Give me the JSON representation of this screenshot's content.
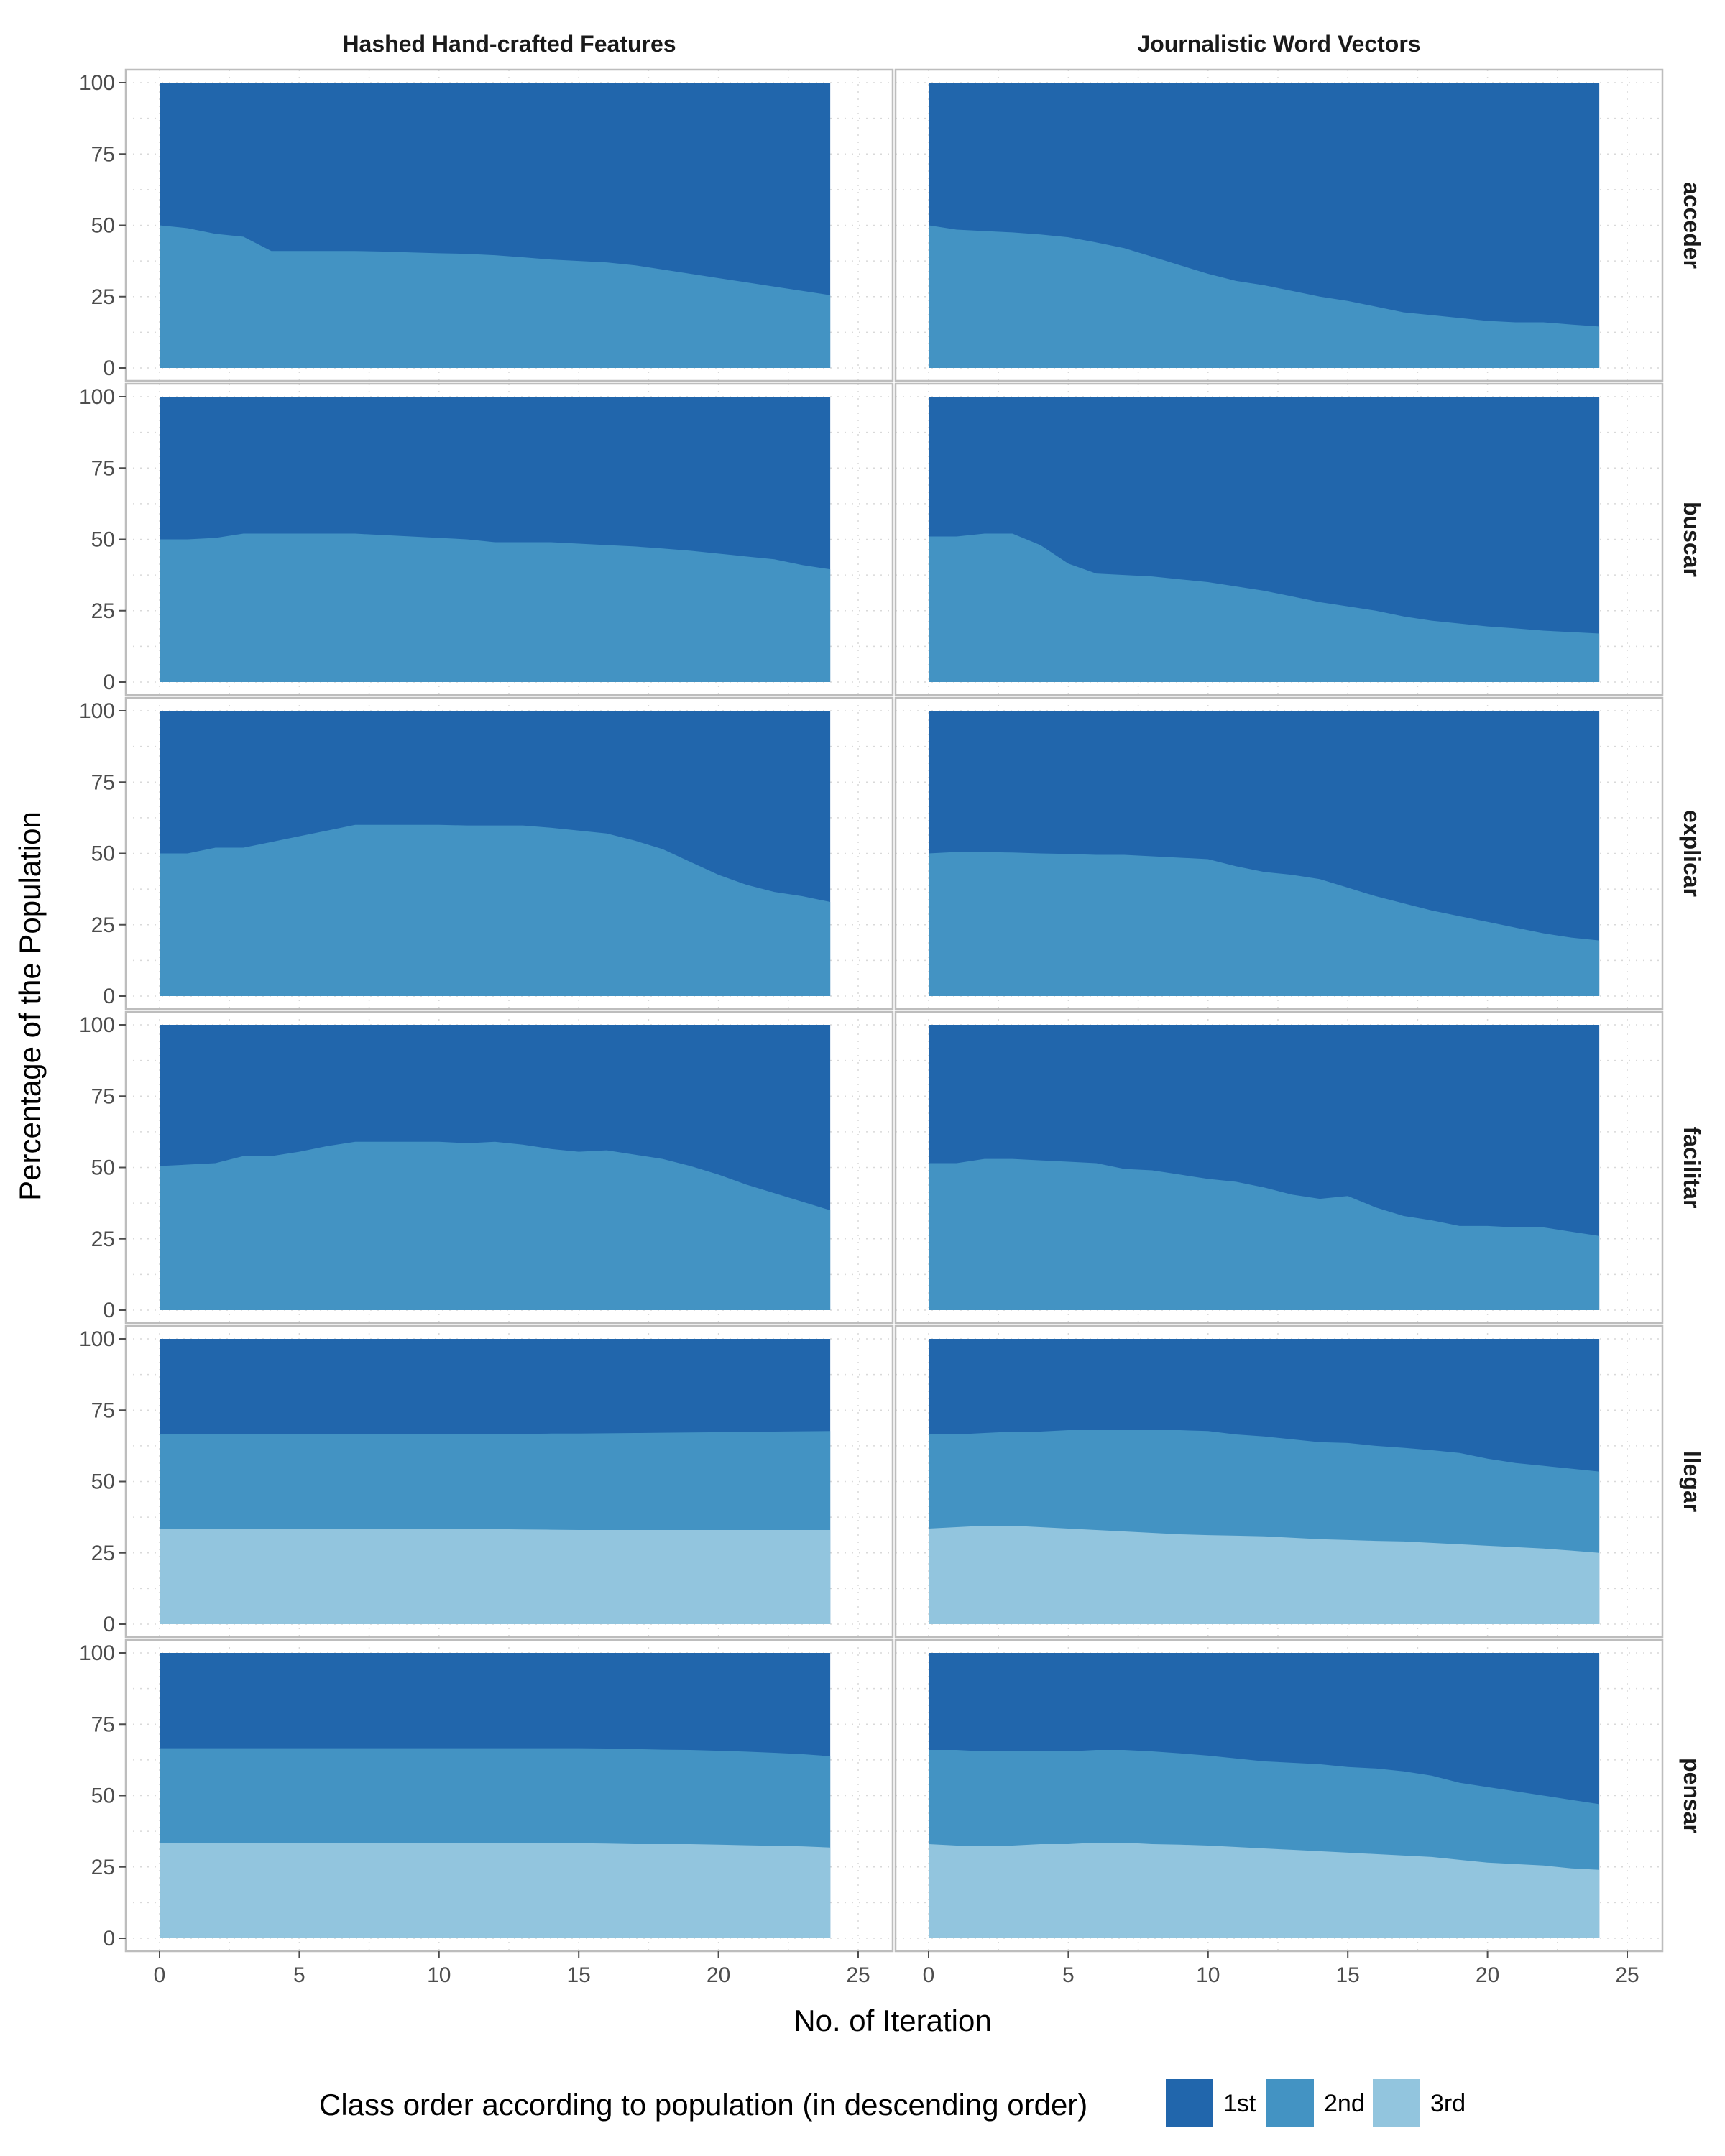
{
  "chart_data": {
    "type": "area",
    "stacked": true,
    "xlabel": "No. of Iteration",
    "ylabel": "Percentage of the Population",
    "xlim": [
      0,
      25
    ],
    "ylim": [
      0,
      100
    ],
    "x_ticks": [
      0,
      5,
      10,
      15,
      20,
      25
    ],
    "y_ticks": [
      0,
      25,
      50,
      75,
      100
    ],
    "grid": true,
    "columns": [
      "Hashed Hand-crafted Features",
      "Journalistic Word Vectors"
    ],
    "rows": [
      "acceder",
      "buscar",
      "explicar",
      "facilitar",
      "llegar",
      "pensar"
    ],
    "x": [
      0,
      1,
      2,
      3,
      4,
      5,
      6,
      7,
      8,
      9,
      10,
      11,
      12,
      13,
      14,
      15,
      16,
      17,
      18,
      19,
      20,
      21,
      22,
      23,
      24
    ],
    "legend": {
      "title": "Class order according to population (in descending order)",
      "position": "bottom",
      "entries": [
        "1st",
        "2nd",
        "3rd"
      ]
    },
    "colors": {
      "1st": "#2166ac",
      "2nd": "#4393c3",
      "3rd": "#92c5de"
    },
    "panels": [
      {
        "row": "acceder",
        "column": "Hashed Hand-crafted Features",
        "series": [
          {
            "name": "2nd",
            "values": [
              50,
              49,
              47,
              46,
              41,
              41,
              41,
              41,
              40.8,
              40.5,
              40.2,
              40,
              39.5,
              38.8,
              38,
              37.5,
              37,
              36,
              34.5,
              33,
              31.5,
              30,
              28.5,
              27,
              25.5
            ]
          }
        ]
      },
      {
        "row": "acceder",
        "column": "Journalistic Word Vectors",
        "series": [
          {
            "name": "2nd",
            "values": [
              50,
              48.5,
              48,
              47.5,
              46.8,
              45.8,
              44,
              42,
              39,
              36,
              33,
              30.5,
              29,
              27,
              25,
              23.5,
              21.5,
              19.5,
              18.5,
              17.5,
              16.5,
              16,
              16,
              15.2,
              14.5
            ]
          }
        ]
      },
      {
        "row": "buscar",
        "column": "Hashed Hand-crafted Features",
        "series": [
          {
            "name": "2nd",
            "values": [
              50,
              50,
              50.5,
              52,
              52,
              52,
              52,
              52,
              51.5,
              51,
              50.5,
              50,
              49,
              49,
              49,
              48.5,
              48,
              47.5,
              46.8,
              46,
              45,
              44,
              43,
              41,
              39.5
            ]
          }
        ]
      },
      {
        "row": "buscar",
        "column": "Journalistic Word Vectors",
        "series": [
          {
            "name": "2nd",
            "values": [
              51,
              51,
              52,
              52,
              48,
              41.5,
              38,
              37.5,
              37,
              36,
              35,
              33.5,
              32,
              30,
              28,
              26.5,
              25,
              23,
              21.5,
              20.5,
              19.5,
              18.8,
              18,
              17.5,
              17
            ]
          }
        ]
      },
      {
        "row": "explicar",
        "column": "Hashed Hand-crafted Features",
        "series": [
          {
            "name": "2nd",
            "values": [
              50,
              50,
              52,
              52,
              54,
              56,
              58,
              60,
              60,
              60,
              60,
              59.8,
              59.8,
              59.8,
              59,
              58,
              57,
              54.5,
              51.5,
              47,
              42.5,
              39,
              36.5,
              35,
              33
            ]
          }
        ]
      },
      {
        "row": "explicar",
        "column": "Journalistic Word Vectors",
        "series": [
          {
            "name": "2nd",
            "values": [
              50,
              50.5,
              50.5,
              50.3,
              50,
              49.8,
              49.5,
              49.5,
              49,
              48.5,
              48,
              45.5,
              43.5,
              42.5,
              41,
              38,
              35,
              32.5,
              30,
              28,
              26,
              24,
              22,
              20.5,
              19.5
            ]
          }
        ]
      },
      {
        "row": "facilitar",
        "column": "Hashed Hand-crafted Features",
        "series": [
          {
            "name": "2nd",
            "values": [
              50.5,
              51,
              51.5,
              54,
              54,
              55.5,
              57.5,
              59,
              59,
              59,
              59,
              58.5,
              59,
              58,
              56.5,
              55.5,
              56,
              54.5,
              53,
              50.5,
              47.5,
              44,
              41,
              38,
              35
            ]
          }
        ]
      },
      {
        "row": "facilitar",
        "column": "Journalistic Word Vectors",
        "series": [
          {
            "name": "2nd",
            "values": [
              51.5,
              51.5,
              53,
              53,
              52.5,
              52,
              51.5,
              49.5,
              49,
              47.5,
              46,
              45,
              43,
              40.5,
              39,
              40,
              36,
              33,
              31.5,
              29.5,
              29.5,
              29,
              29,
              27.5,
              26
            ]
          }
        ]
      },
      {
        "row": "llegar",
        "column": "Hashed Hand-crafted Features",
        "series": [
          {
            "name": "3rd",
            "values": [
              33.3,
              33.3,
              33.3,
              33.3,
              33.3,
              33.3,
              33.3,
              33.3,
              33.3,
              33.3,
              33.3,
              33.3,
              33.3,
              33.2,
              33.1,
              33,
              33,
              33,
              33,
              33,
              33,
              33,
              33,
              33,
              33
            ]
          },
          {
            "name": "2nd",
            "values": [
              33.3,
              33.3,
              33.3,
              33.3,
              33.3,
              33.3,
              33.3,
              33.3,
              33.3,
              33.3,
              33.3,
              33.3,
              33.3,
              33.5,
              33.7,
              33.8,
              33.9,
              34,
              34.1,
              34.2,
              34.3,
              34.4,
              34.5,
              34.6,
              34.7
            ]
          }
        ]
      },
      {
        "row": "llegar",
        "column": "Journalistic Word Vectors",
        "series": [
          {
            "name": "3rd",
            "values": [
              33.5,
              34,
              34.5,
              34.5,
              34,
              33.5,
              33,
              32.5,
              32,
              31.5,
              31.2,
              31,
              30.8,
              30.3,
              29.8,
              29.5,
              29.2,
              29,
              28.5,
              28,
              27.5,
              27,
              26.5,
              25.8,
              25
            ]
          },
          {
            "name": "2nd",
            "values": [
              33,
              32.5,
              32.5,
              33,
              33.5,
              34.5,
              35,
              35.5,
              36,
              36.5,
              36.5,
              35.5,
              35,
              34.5,
              34,
              34,
              33.3,
              32.8,
              32.5,
              32,
              30.5,
              29.5,
              29,
              28.7,
              28.5
            ]
          }
        ]
      },
      {
        "row": "pensar",
        "column": "Hashed Hand-crafted Features",
        "series": [
          {
            "name": "3rd",
            "values": [
              33.3,
              33.3,
              33.3,
              33.3,
              33.3,
              33.3,
              33.3,
              33.3,
              33.3,
              33.3,
              33.3,
              33.3,
              33.3,
              33.3,
              33.3,
              33.3,
              33.2,
              33,
              33,
              33,
              32.8,
              32.6,
              32.4,
              32.2,
              31.8
            ]
          },
          {
            "name": "2nd",
            "values": [
              33.3,
              33.3,
              33.3,
              33.3,
              33.3,
              33.3,
              33.3,
              33.3,
              33.3,
              33.3,
              33.3,
              33.3,
              33.3,
              33.3,
              33.3,
              33.3,
              33.3,
              33.3,
              33.1,
              33,
              32.9,
              32.8,
              32.6,
              32.3,
              32
            ]
          }
        ]
      },
      {
        "row": "pensar",
        "column": "Journalistic Word Vectors",
        "series": [
          {
            "name": "3rd",
            "values": [
              33,
              32.5,
              32.5,
              32.5,
              33,
              33,
              33.5,
              33.5,
              33,
              32.8,
              32.5,
              32,
              31.5,
              31,
              30.5,
              30,
              29.5,
              29,
              28.5,
              27.5,
              26.5,
              26,
              25.5,
              24.5,
              24
            ]
          },
          {
            "name": "2nd",
            "values": [
              33,
              33.5,
              33,
              33,
              32.5,
              32.5,
              32.5,
              32.5,
              32.5,
              32,
              31.5,
              31,
              30.5,
              30.5,
              30.5,
              30,
              30,
              29.5,
              28.5,
              27,
              26.5,
              25.5,
              24.5,
              24,
              23
            ]
          }
        ]
      }
    ]
  }
}
